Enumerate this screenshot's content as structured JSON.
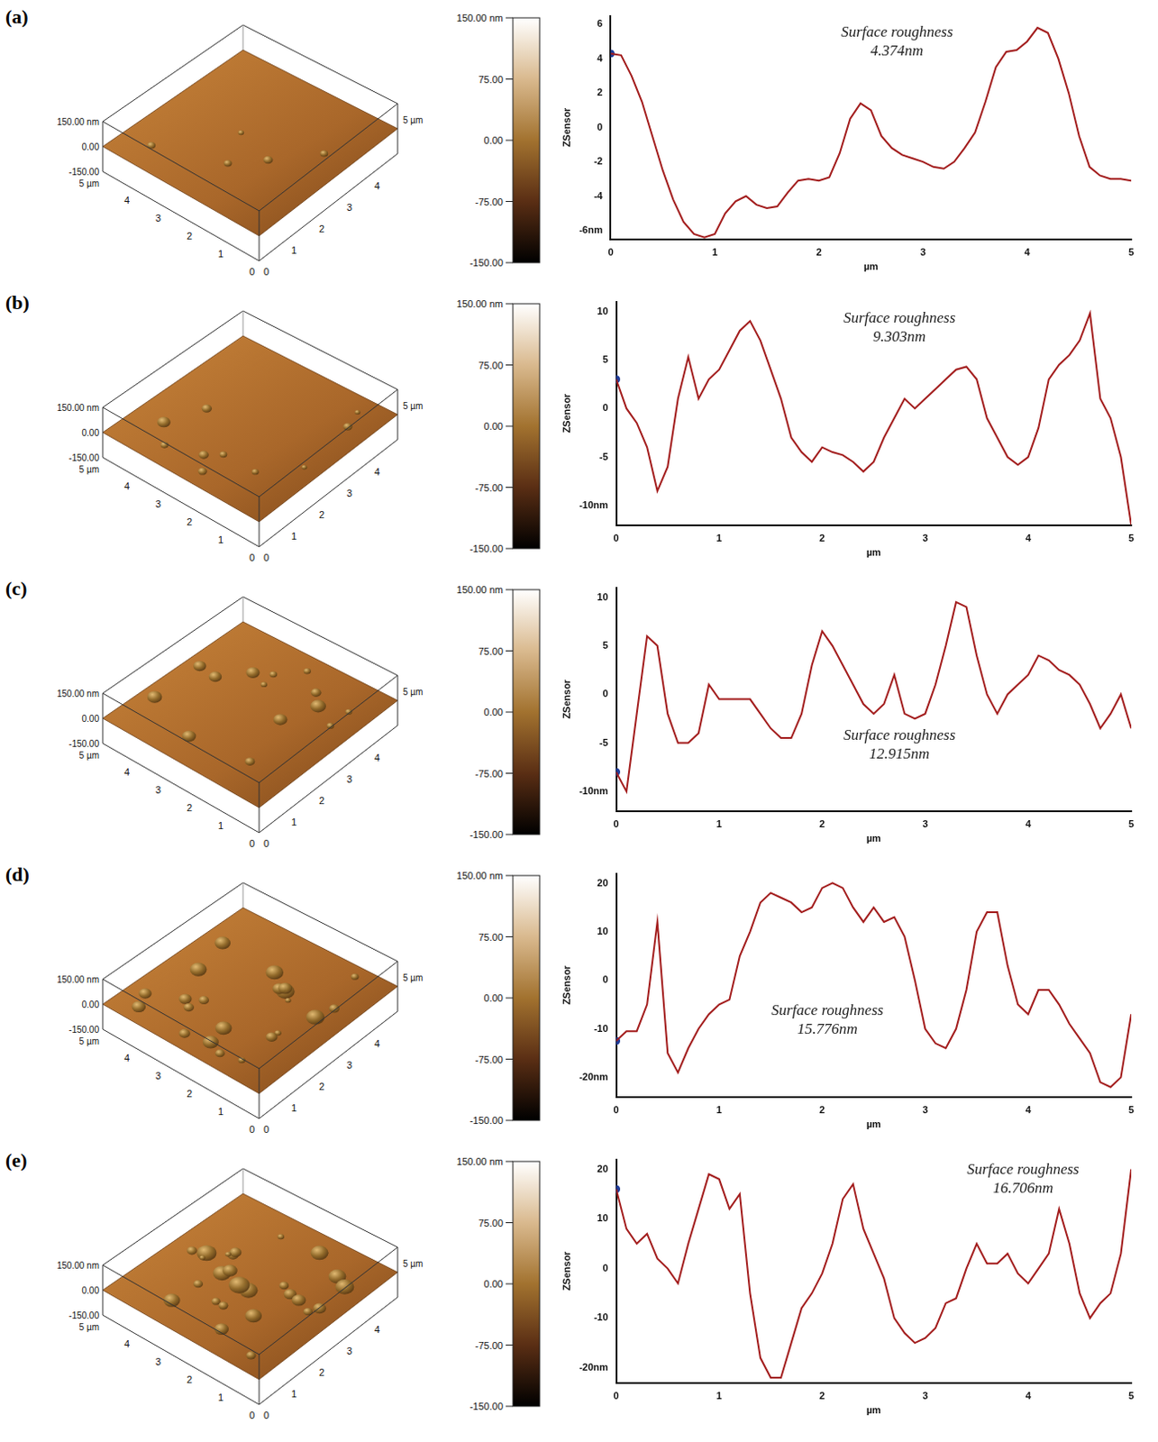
{
  "afm_view": {
    "z_labels": [
      "150.00 nm",
      "0.00",
      "-150.00"
    ],
    "x_axis_label": "5 µm",
    "y_axis_label": "5 µm",
    "x_ticks": [
      0,
      1,
      2,
      3,
      4
    ],
    "y_ticks": [
      0,
      1,
      2,
      3,
      4
    ],
    "colorbar": {
      "range": [
        -150,
        150
      ],
      "ticks": [
        {
          "value": 150,
          "label": "150.00 nm"
        },
        {
          "value": 75,
          "label": "75.00"
        },
        {
          "value": 0,
          "label": "0.00"
        },
        {
          "value": -75,
          "label": "-75.00"
        },
        {
          "value": -150,
          "label": "-150.00"
        }
      ]
    }
  },
  "chart_data": [
    {
      "panel": "(a)",
      "type": "line",
      "color": "#a31d1d",
      "x_label": "µm",
      "y_label": "ZSensor",
      "grid": false,
      "roughness": {
        "value": 4.374,
        "label": "4.374nm"
      },
      "annotation": "Surface roughness",
      "start_marker": {
        "x": 0,
        "y": 4.3,
        "color": "#1f3c99"
      },
      "xlim": [
        0,
        5
      ],
      "xticks": [
        0,
        1,
        2,
        3,
        4,
        5
      ],
      "ylim": [
        -6.5,
        6.5
      ],
      "yticks": [
        6,
        4,
        2,
        0,
        -2,
        -4,
        {
          "value": -6,
          "label": "-6nm"
        }
      ],
      "x": [
        0,
        0.1,
        0.2,
        0.3,
        0.4,
        0.5,
        0.6,
        0.7,
        0.8,
        0.9,
        1.0,
        1.1,
        1.2,
        1.3,
        1.4,
        1.5,
        1.6,
        1.7,
        1.8,
        1.9,
        2.0,
        2.1,
        2.2,
        2.3,
        2.4,
        2.5,
        2.6,
        2.7,
        2.8,
        2.9,
        3.0,
        3.1,
        3.2,
        3.3,
        3.4,
        3.5,
        3.6,
        3.7,
        3.8,
        3.9,
        4.0,
        4.1,
        4.2,
        4.3,
        4.4,
        4.5,
        4.6,
        4.7,
        4.8,
        4.9,
        5.0
      ],
      "values": [
        4.3,
        4.2,
        3.0,
        1.5,
        -0.5,
        -2.5,
        -4.2,
        -5.5,
        -6.2,
        -6.4,
        -6.2,
        -5.0,
        -4.3,
        -4.0,
        -4.5,
        -4.7,
        -4.6,
        -3.8,
        -3.1,
        -3.0,
        -3.1,
        -2.9,
        -1.5,
        0.5,
        1.4,
        1.0,
        -0.5,
        -1.2,
        -1.6,
        -1.8,
        -2.0,
        -2.3,
        -2.4,
        -2.0,
        -1.2,
        -0.3,
        1.5,
        3.5,
        4.4,
        4.5,
        5.0,
        5.8,
        5.5,
        4.0,
        2.0,
        -0.5,
        -2.3,
        -2.8,
        -3.0,
        -3.0,
        -3.1
      ]
    },
    {
      "panel": "(b)",
      "type": "line",
      "color": "#a31d1d",
      "x_label": "µm",
      "y_label": "ZSensor",
      "grid": false,
      "roughness": {
        "value": 9.303,
        "label": "9.303nm"
      },
      "annotation": "Surface roughness",
      "start_marker": {
        "x": 0,
        "y": 3,
        "color": "#1f3c99"
      },
      "xlim": [
        0,
        5
      ],
      "xticks": [
        0,
        1,
        2,
        3,
        4,
        5
      ],
      "ylim": [
        -12,
        11
      ],
      "yticks": [
        10,
        5,
        0,
        -5,
        {
          "value": -10,
          "label": "-10nm"
        }
      ],
      "x": [
        0,
        0.1,
        0.2,
        0.3,
        0.4,
        0.5,
        0.6,
        0.7,
        0.8,
        0.9,
        1.0,
        1.1,
        1.2,
        1.3,
        1.4,
        1.5,
        1.6,
        1.7,
        1.8,
        1.9,
        2.0,
        2.1,
        2.2,
        2.3,
        2.4,
        2.5,
        2.6,
        2.7,
        2.8,
        2.9,
        3.0,
        3.1,
        3.2,
        3.3,
        3.4,
        3.5,
        3.6,
        3.7,
        3.8,
        3.9,
        4.0,
        4.1,
        4.2,
        4.3,
        4.4,
        4.5,
        4.6,
        4.7,
        4.8,
        4.9,
        5.0
      ],
      "values": [
        3,
        0,
        -1.5,
        -4,
        -8.5,
        -6,
        1,
        5.3,
        1,
        3,
        4,
        6,
        8,
        9,
        7,
        4,
        1,
        -3,
        -4.5,
        -5.5,
        -4,
        -4.5,
        -4.8,
        -5.5,
        -6.5,
        -5.5,
        -3,
        -1,
        1,
        0,
        1,
        2,
        3,
        4,
        4.3,
        3,
        -1,
        -3,
        -5,
        -5.8,
        -5,
        -2,
        3,
        4.5,
        5.5,
        7,
        9.8,
        1,
        -1,
        -5,
        -12
      ]
    },
    {
      "panel": "(c)",
      "type": "line",
      "color": "#a31d1d",
      "x_label": "µm",
      "y_label": "ZSensor",
      "grid": false,
      "roughness": {
        "value": 12.915,
        "label": "12.915nm"
      },
      "annotation": "Surface roughness",
      "start_marker": {
        "x": 0,
        "y": -8,
        "color": "#1f3c99"
      },
      "xlim": [
        0,
        5
      ],
      "xticks": [
        0,
        1,
        2,
        3,
        4,
        5
      ],
      "ylim": [
        -12,
        11
      ],
      "yticks": [
        10,
        5,
        0,
        -5,
        {
          "value": -10,
          "label": "-10nm"
        }
      ],
      "x": [
        0,
        0.1,
        0.2,
        0.3,
        0.4,
        0.5,
        0.6,
        0.7,
        0.8,
        0.9,
        1.0,
        1.1,
        1.2,
        1.3,
        1.4,
        1.5,
        1.6,
        1.7,
        1.8,
        1.9,
        2.0,
        2.1,
        2.2,
        2.3,
        2.4,
        2.5,
        2.6,
        2.7,
        2.8,
        2.9,
        3.0,
        3.1,
        3.2,
        3.3,
        3.4,
        3.5,
        3.6,
        3.7,
        3.8,
        3.9,
        4.0,
        4.1,
        4.2,
        4.3,
        4.4,
        4.5,
        4.6,
        4.7,
        4.8,
        4.9,
        5.0
      ],
      "values": [
        -8,
        -10,
        -2,
        6,
        5,
        -2,
        -5,
        -5,
        -4,
        1,
        -0.5,
        -0.5,
        -0.5,
        -0.5,
        -2,
        -3.5,
        -4.5,
        -4.5,
        -2,
        3,
        6.5,
        5,
        3,
        1,
        -1,
        -2,
        -1,
        2,
        -2,
        -2.5,
        -2,
        1,
        5,
        9.5,
        9,
        4,
        0,
        -2,
        0,
        1,
        2,
        4,
        3.5,
        2.5,
        2,
        1,
        -1,
        -3.5,
        -2,
        0,
        -3.5
      ]
    },
    {
      "panel": "(d)",
      "type": "line",
      "color": "#a31d1d",
      "x_label": "µm",
      "y_label": "ZSensor",
      "grid": false,
      "roughness": {
        "value": 15.776,
        "label": "15.776nm"
      },
      "annotation": "Surface roughness",
      "start_marker": {
        "x": 0,
        "y": -12.5,
        "color": "#1f3c99"
      },
      "xlim": [
        0,
        5
      ],
      "xticks": [
        0,
        1,
        2,
        3,
        4,
        5
      ],
      "ylim": [
        -24,
        22
      ],
      "yticks": [
        20,
        10,
        0,
        -10,
        {
          "value": -20,
          "label": "-20nm"
        }
      ],
      "x": [
        0,
        0.1,
        0.2,
        0.3,
        0.4,
        0.5,
        0.6,
        0.7,
        0.8,
        0.9,
        1.0,
        1.1,
        1.2,
        1.3,
        1.4,
        1.5,
        1.6,
        1.7,
        1.8,
        1.9,
        2.0,
        2.1,
        2.2,
        2.3,
        2.4,
        2.5,
        2.6,
        2.7,
        2.8,
        2.9,
        3.0,
        3.1,
        3.2,
        3.3,
        3.4,
        3.5,
        3.6,
        3.7,
        3.8,
        3.9,
        4.0,
        4.1,
        4.2,
        4.3,
        4.4,
        4.5,
        4.6,
        4.7,
        4.8,
        4.9,
        5.0
      ],
      "values": [
        -12.5,
        -10.5,
        -10.5,
        -5,
        12,
        -15,
        -19,
        -14,
        -10,
        -7,
        -5,
        -4,
        5,
        10,
        16,
        18,
        17,
        16,
        14,
        15,
        19,
        20,
        19,
        15,
        12,
        15,
        12,
        13,
        9,
        0,
        -10,
        -13,
        -14,
        -10,
        -2,
        10,
        14,
        14,
        3,
        -5,
        -7,
        -2,
        -2,
        -5,
        -9,
        -12,
        -15,
        -21,
        -22,
        -20,
        -7
      ]
    },
    {
      "panel": "(e)",
      "type": "line",
      "color": "#a31d1d",
      "x_label": "µm",
      "y_label": "ZSensor",
      "grid": false,
      "roughness": {
        "value": 16.706,
        "label": "16.706nm"
      },
      "annotation": "Surface roughness",
      "start_marker": {
        "x": 0,
        "y": 16,
        "color": "#1f3c99"
      },
      "xlim": [
        0,
        5
      ],
      "xticks": [
        0,
        1,
        2,
        3,
        4,
        5
      ],
      "ylim": [
        -23,
        22
      ],
      "yticks": [
        20,
        10,
        0,
        -10,
        {
          "value": -20,
          "label": "-20nm"
        }
      ],
      "x": [
        0,
        0.1,
        0.2,
        0.3,
        0.4,
        0.5,
        0.6,
        0.7,
        0.8,
        0.9,
        1.0,
        1.1,
        1.2,
        1.3,
        1.4,
        1.5,
        1.6,
        1.7,
        1.8,
        1.9,
        2.0,
        2.1,
        2.2,
        2.3,
        2.4,
        2.5,
        2.6,
        2.7,
        2.8,
        2.9,
        3.0,
        3.1,
        3.2,
        3.3,
        3.4,
        3.5,
        3.6,
        3.7,
        3.8,
        3.9,
        4.0,
        4.1,
        4.2,
        4.3,
        4.4,
        4.5,
        4.6,
        4.7,
        4.8,
        4.9,
        5.0
      ],
      "values": [
        16,
        8,
        5,
        7,
        2,
        0,
        -3,
        5,
        12,
        19,
        18,
        12,
        15,
        -5,
        -18,
        -22,
        -22,
        -15,
        -8,
        -5,
        -1,
        5,
        14,
        17,
        8,
        3,
        -2,
        -10,
        -13,
        -15,
        -14,
        -12,
        -7,
        -6,
        0,
        5,
        1,
        1,
        3,
        -1,
        -3,
        0,
        3,
        12,
        5,
        -5,
        -10,
        -7,
        -5,
        3,
        20
      ]
    }
  ]
}
